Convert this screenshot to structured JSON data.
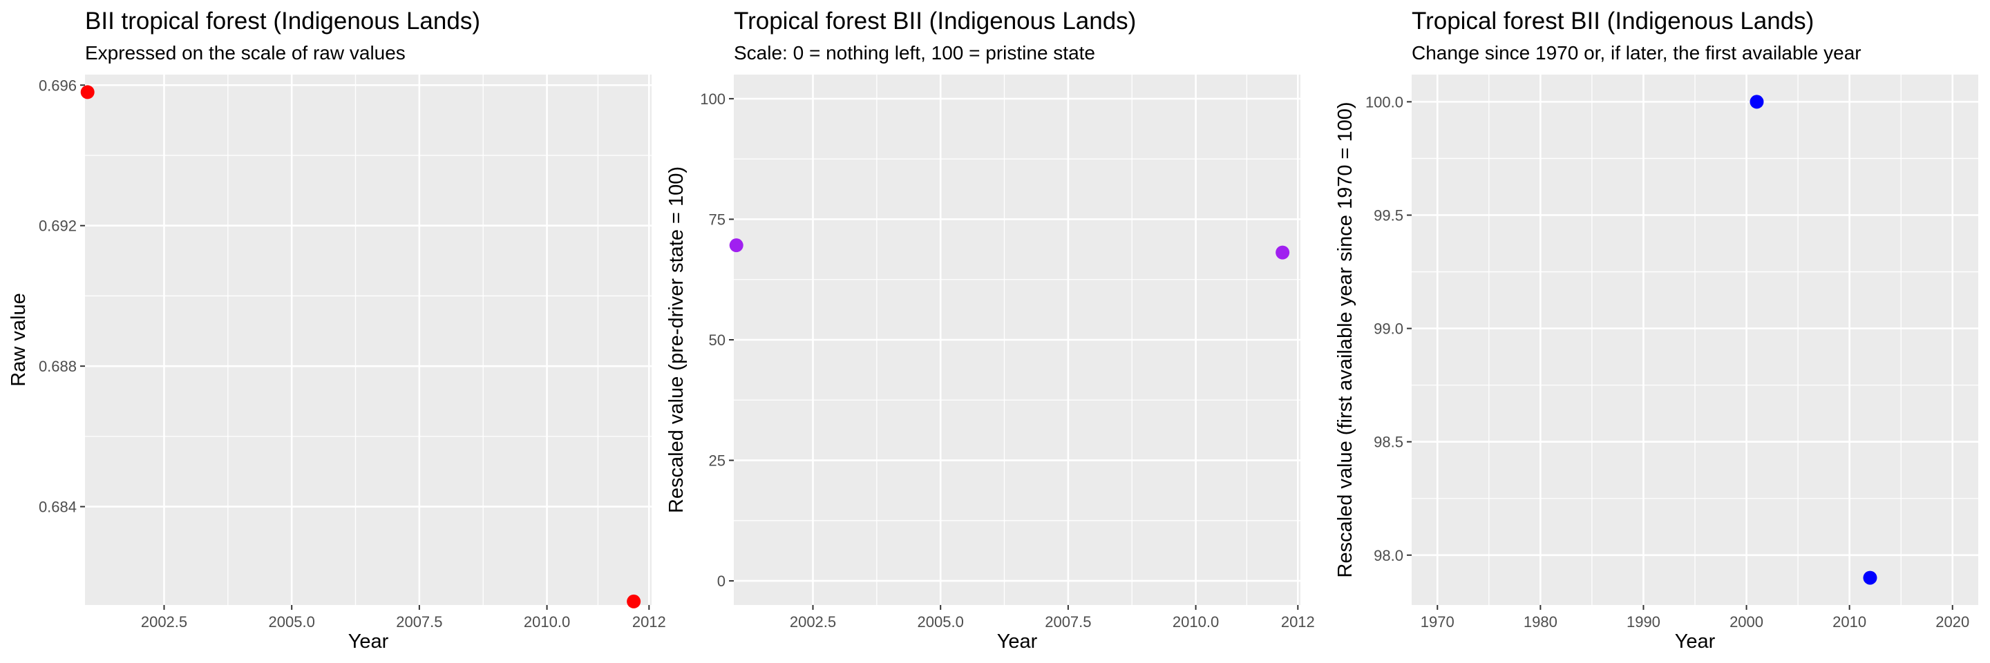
{
  "chart_data": [
    {
      "type": "scatter",
      "title": "BII tropical forest (Indigenous Lands)",
      "subtitle": "Expressed on the scale of raw values",
      "xlabel": "Year",
      "ylabel": "Raw value",
      "xlim": [
        2000.95,
        2012.05
      ],
      "ylim": [
        0.6812,
        0.6963
      ],
      "xticks": [
        2002.5,
        2005.0,
        2007.5,
        2010.0,
        2012
      ],
      "xtick_labels": [
        "2002.5",
        "2005.0",
        "2007.5",
        "2010.0",
        "2012"
      ],
      "yticks": [
        0.684,
        0.688,
        0.692,
        0.696
      ],
      "ytick_labels": [
        "0.684",
        "0.688",
        "0.692",
        "0.696"
      ],
      "grid": true,
      "color": "#ff0000",
      "points": [
        {
          "x": 2001.0,
          "y": 0.6958
        },
        {
          "x": 2011.7,
          "y": 0.6813
        }
      ]
    },
    {
      "type": "scatter",
      "title": "Tropical forest BII (Indigenous Lands)",
      "subtitle": "Scale: 0 = nothing left, 100 = pristine state",
      "xlabel": "Year",
      "ylabel": "Rescaled value (pre-driver state = 100)",
      "xlim": [
        2000.95,
        2012.05
      ],
      "ylim": [
        -5,
        105
      ],
      "xticks": [
        2002.5,
        2005.0,
        2007.5,
        2010.0,
        2012
      ],
      "xtick_labels": [
        "2002.5",
        "2005.0",
        "2007.5",
        "2010.0",
        "2012"
      ],
      "yticks": [
        0,
        25,
        50,
        75,
        100
      ],
      "ytick_labels": [
        "0",
        "25",
        "50",
        "75",
        "100"
      ],
      "grid": true,
      "color": "#a020f0",
      "points": [
        {
          "x": 2001.0,
          "y": 69.6
        },
        {
          "x": 2011.7,
          "y": 68.1
        }
      ]
    },
    {
      "type": "scatter",
      "title": "Tropical forest BII (Indigenous Lands)",
      "subtitle": "Change since 1970 or, if later, the first available year",
      "xlabel": "Year",
      "ylabel": "Rescaled value (first available year since 1970 = 100)",
      "xlim": [
        1967.5,
        2022.5
      ],
      "ylim": [
        97.78,
        100.12
      ],
      "xticks": [
        1970,
        1980,
        1990,
        2000,
        2010,
        2020
      ],
      "xtick_labels": [
        "1970",
        "1980",
        "1990",
        "2000",
        "2010",
        "2020"
      ],
      "yticks": [
        98.0,
        98.5,
        99.0,
        99.5,
        100.0
      ],
      "ytick_labels": [
        "98.0",
        "98.5",
        "99.0",
        "99.5",
        "100.0"
      ],
      "grid": true,
      "color": "#0000ff",
      "points": [
        {
          "x": 2001,
          "y": 100.0
        },
        {
          "x": 2012,
          "y": 97.9
        }
      ]
    }
  ]
}
